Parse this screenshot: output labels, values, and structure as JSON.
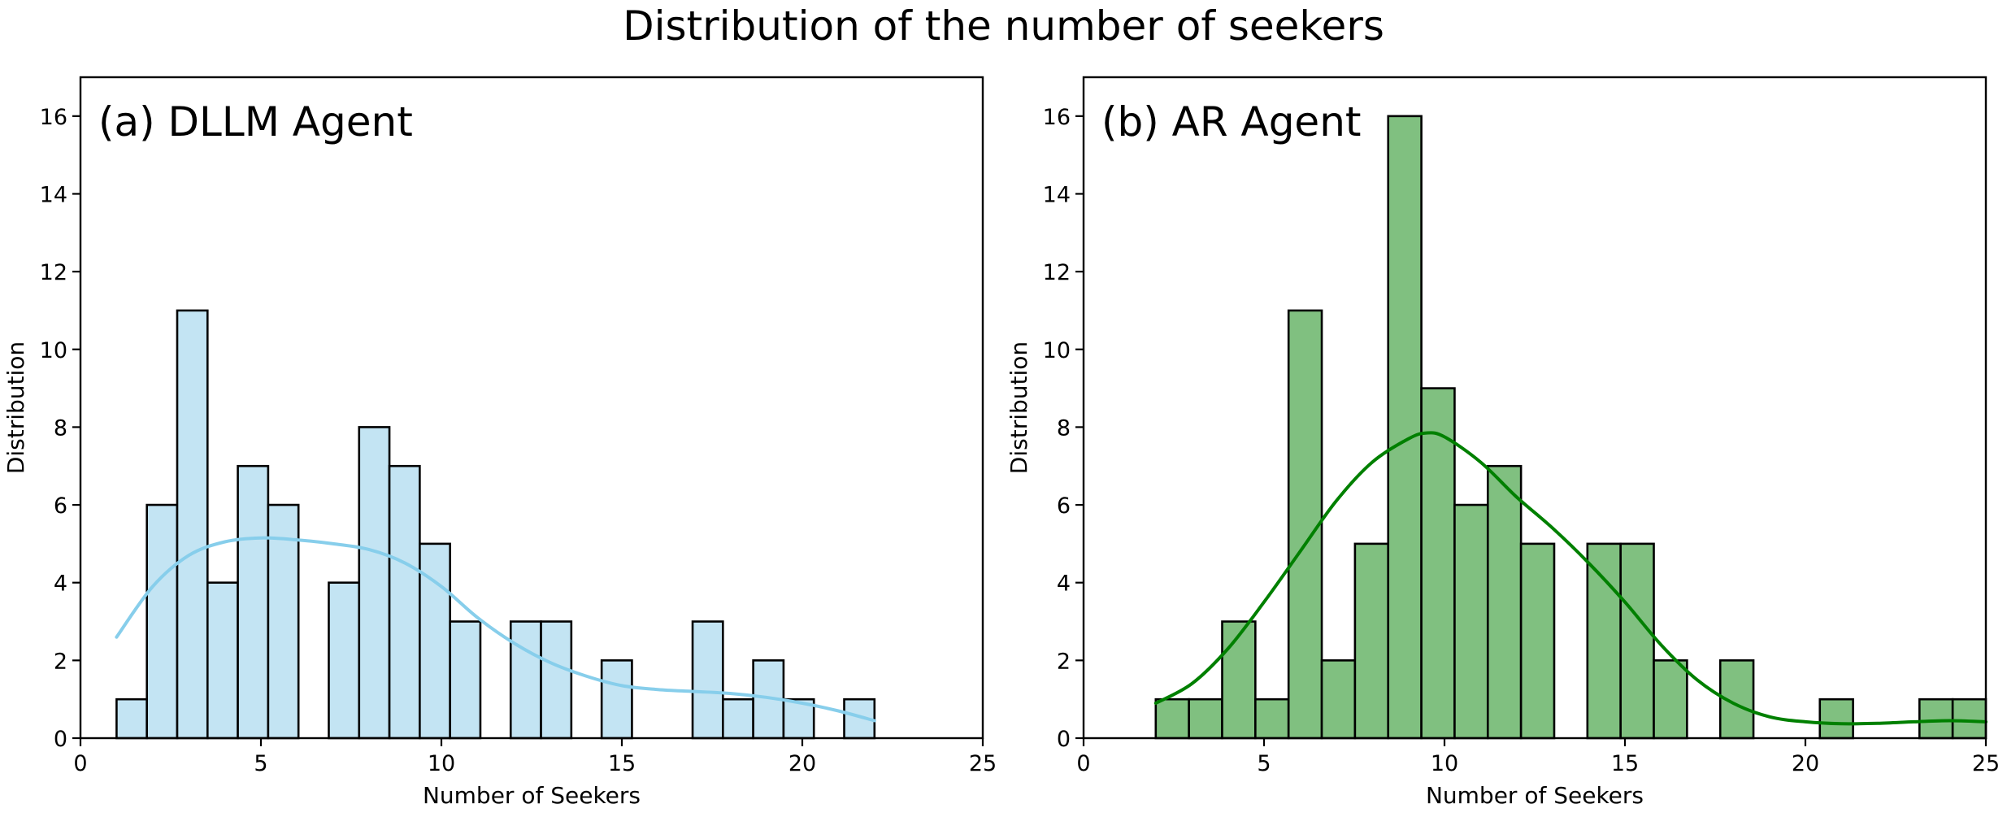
{
  "figure": {
    "title": "Distribution of the number of seekers"
  },
  "chart_data": [
    {
      "type": "bar",
      "subtype": "histogram_with_kde",
      "panel_label": "(a) DLLM Agent",
      "xlabel": "Number of Seekers",
      "ylabel": "Distribution",
      "xlim": [
        0,
        25
      ],
      "ylim": [
        0,
        17
      ],
      "xticks": [
        0,
        5,
        10,
        15,
        20,
        25
      ],
      "yticks": [
        0,
        2,
        4,
        6,
        8,
        10,
        12,
        14,
        16
      ],
      "grid": false,
      "colors": {
        "bar_fill": "#c3e4f3",
        "bar_edge": "#000000",
        "kde": "#87ceeb"
      },
      "bins": [
        {
          "x0": 1.0,
          "x1": 1.84,
          "count": 1
        },
        {
          "x0": 1.84,
          "x1": 2.68,
          "count": 6
        },
        {
          "x0": 2.68,
          "x1": 3.52,
          "count": 11
        },
        {
          "x0": 3.52,
          "x1": 4.36,
          "count": 4
        },
        {
          "x0": 4.36,
          "x1": 5.2,
          "count": 7
        },
        {
          "x0": 5.2,
          "x1": 6.04,
          "count": 6
        },
        {
          "x0": 6.88,
          "x1": 7.72,
          "count": 4
        },
        {
          "x0": 7.72,
          "x1": 8.56,
          "count": 8
        },
        {
          "x0": 8.56,
          "x1": 9.4,
          "count": 7
        },
        {
          "x0": 9.4,
          "x1": 10.24,
          "count": 5
        },
        {
          "x0": 10.24,
          "x1": 11.08,
          "count": 3
        },
        {
          "x0": 11.92,
          "x1": 12.76,
          "count": 3
        },
        {
          "x0": 12.76,
          "x1": 13.6,
          "count": 3
        },
        {
          "x0": 14.44,
          "x1": 15.28,
          "count": 2
        },
        {
          "x0": 16.96,
          "x1": 17.8,
          "count": 3
        },
        {
          "x0": 17.8,
          "x1": 18.64,
          "count": 1
        },
        {
          "x0": 18.64,
          "x1": 19.48,
          "count": 2
        },
        {
          "x0": 19.48,
          "x1": 20.32,
          "count": 1
        },
        {
          "x0": 21.16,
          "x1": 22.0,
          "count": 1
        }
      ],
      "kde": {
        "x": [
          1,
          2,
          3,
          4,
          5,
          6,
          7,
          8,
          9,
          10,
          11,
          12,
          13,
          14,
          15,
          16,
          17,
          18,
          19,
          20,
          21,
          22
        ],
        "y": [
          2.6,
          3.9,
          4.7,
          5.05,
          5.15,
          5.1,
          5.0,
          4.85,
          4.5,
          3.9,
          3.1,
          2.45,
          1.95,
          1.6,
          1.35,
          1.25,
          1.2,
          1.15,
          1.05,
          0.9,
          0.7,
          0.45
        ]
      }
    },
    {
      "type": "bar",
      "subtype": "histogram_with_kde",
      "panel_label": "(b) AR Agent",
      "xlabel": "Number of Seekers",
      "ylabel": "Distribution",
      "xlim": [
        0,
        25
      ],
      "ylim": [
        0,
        17
      ],
      "xticks": [
        0,
        5,
        10,
        15,
        20,
        25
      ],
      "yticks": [
        0,
        2,
        4,
        6,
        8,
        10,
        12,
        14,
        16
      ],
      "grid": false,
      "colors": {
        "bar_fill": "#80c080",
        "bar_edge": "#000000",
        "kde": "#008000"
      },
      "bins": [
        {
          "x0": 2.0,
          "x1": 2.92,
          "count": 1
        },
        {
          "x0": 2.92,
          "x1": 3.84,
          "count": 1
        },
        {
          "x0": 3.84,
          "x1": 4.76,
          "count": 3
        },
        {
          "x0": 4.76,
          "x1": 5.68,
          "count": 1
        },
        {
          "x0": 5.68,
          "x1": 6.6,
          "count": 11
        },
        {
          "x0": 6.6,
          "x1": 7.52,
          "count": 2
        },
        {
          "x0": 7.52,
          "x1": 8.44,
          "count": 5
        },
        {
          "x0": 8.44,
          "x1": 9.36,
          "count": 16
        },
        {
          "x0": 9.36,
          "x1": 10.28,
          "count": 9
        },
        {
          "x0": 10.28,
          "x1": 11.2,
          "count": 6
        },
        {
          "x0": 11.2,
          "x1": 12.12,
          "count": 7
        },
        {
          "x0": 12.12,
          "x1": 13.04,
          "count": 5
        },
        {
          "x0": 13.96,
          "x1": 14.88,
          "count": 5
        },
        {
          "x0": 14.88,
          "x1": 15.8,
          "count": 5
        },
        {
          "x0": 15.8,
          "x1": 16.72,
          "count": 2
        },
        {
          "x0": 17.64,
          "x1": 18.56,
          "count": 2
        },
        {
          "x0": 20.4,
          "x1": 21.32,
          "count": 1
        },
        {
          "x0": 23.16,
          "x1": 24.08,
          "count": 1
        },
        {
          "x0": 24.08,
          "x1": 25.0,
          "count": 1
        }
      ],
      "kde": {
        "x": [
          2,
          3,
          4,
          5,
          6,
          7,
          8,
          9,
          9.5,
          10,
          11,
          12,
          13,
          14,
          15,
          16,
          17,
          18,
          19,
          20,
          21,
          22,
          23,
          24,
          25
        ],
        "y": [
          0.9,
          1.4,
          2.3,
          3.5,
          4.8,
          6.1,
          7.1,
          7.7,
          7.85,
          7.75,
          7.1,
          6.2,
          5.4,
          4.5,
          3.5,
          2.4,
          1.5,
          0.9,
          0.55,
          0.42,
          0.37,
          0.38,
          0.42,
          0.45,
          0.42
        ]
      }
    }
  ]
}
